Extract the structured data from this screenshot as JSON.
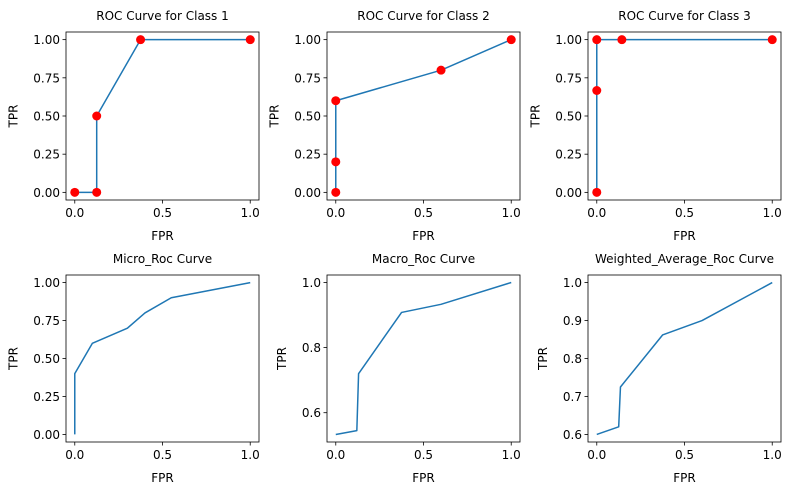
{
  "colors": {
    "line": "#1f77b4",
    "marker": "#ff0000"
  },
  "chart_data": [
    {
      "type": "line",
      "title": "ROC Curve for Class 1",
      "xlabel": "FPR",
      "ylabel": "TPR",
      "x": [
        0.0,
        0.125,
        0.125,
        0.375,
        1.0
      ],
      "y": [
        0.0,
        0.0,
        0.5,
        1.0,
        1.0
      ],
      "markers": true,
      "xlim": [
        -0.05,
        1.05
      ],
      "ylim": [
        -0.05,
        1.05
      ],
      "xticks": [
        0,
        0.5,
        1
      ],
      "xtick_labels": [
        "0.0",
        "0.5",
        "1.0"
      ],
      "yticks": [
        0,
        0.25,
        0.5,
        0.75,
        1
      ],
      "ytick_labels": [
        "0.00",
        "0.25",
        "0.50",
        "0.75",
        "1.00"
      ]
    },
    {
      "type": "line",
      "title": "ROC Curve for Class 2",
      "xlabel": "FPR",
      "ylabel": "TPR",
      "x": [
        0.0,
        0.0,
        0.0,
        0.6,
        1.0
      ],
      "y": [
        0.0,
        0.2,
        0.6,
        0.8,
        1.0
      ],
      "markers": true,
      "xlim": [
        -0.05,
        1.05
      ],
      "ylim": [
        -0.05,
        1.05
      ],
      "xticks": [
        0,
        0.5,
        1
      ],
      "xtick_labels": [
        "0.0",
        "0.5",
        "1.0"
      ],
      "yticks": [
        0,
        0.25,
        0.5,
        0.75,
        1
      ],
      "ytick_labels": [
        "0.00",
        "0.25",
        "0.50",
        "0.75",
        "1.00"
      ]
    },
    {
      "type": "line",
      "title": "ROC Curve for Class 3",
      "xlabel": "FPR",
      "ylabel": "TPR",
      "x": [
        0.0,
        0.0,
        0.0,
        0.143,
        1.0
      ],
      "y": [
        0.0,
        0.667,
        1.0,
        1.0,
        1.0
      ],
      "markers": true,
      "xlim": [
        -0.05,
        1.05
      ],
      "ylim": [
        -0.05,
        1.05
      ],
      "xticks": [
        0,
        0.5,
        1
      ],
      "xtick_labels": [
        "0.0",
        "0.5",
        "1.0"
      ],
      "yticks": [
        0,
        0.25,
        0.5,
        0.75,
        1
      ],
      "ytick_labels": [
        "0.00",
        "0.25",
        "0.50",
        "0.75",
        "1.00"
      ]
    },
    {
      "type": "line",
      "title": "Micro_Roc Curve",
      "xlabel": "FPR",
      "ylabel": "TPR",
      "x": [
        0.0,
        0.0,
        0.1,
        0.3,
        0.4,
        0.55,
        1.0
      ],
      "y": [
        0.0,
        0.4,
        0.6,
        0.7,
        0.8,
        0.9,
        1.0
      ],
      "markers": false,
      "xlim": [
        -0.05,
        1.05
      ],
      "ylim": [
        -0.05,
        1.05
      ],
      "xticks": [
        0,
        0.5,
        1
      ],
      "xtick_labels": [
        "0.0",
        "0.5",
        "1.0"
      ],
      "yticks": [
        0,
        0.25,
        0.5,
        0.75,
        1
      ],
      "ytick_labels": [
        "0.00",
        "0.25",
        "0.50",
        "0.75",
        "1.00"
      ]
    },
    {
      "type": "line",
      "title": "Macro_Roc Curve",
      "xlabel": "FPR",
      "ylabel": "TPR",
      "x": [
        0.0,
        0.12,
        0.13,
        0.375,
        0.6,
        1.0
      ],
      "y": [
        0.533,
        0.545,
        0.72,
        0.908,
        0.933,
        1.0
      ],
      "markers": false,
      "xlim": [
        -0.05,
        1.05
      ],
      "ylim": [
        0.51,
        1.023
      ],
      "xticks": [
        0,
        0.5,
        1
      ],
      "xtick_labels": [
        "0.0",
        "0.5",
        "1.0"
      ],
      "yticks": [
        0.6,
        0.8,
        1.0
      ],
      "ytick_labels": [
        "0.6",
        "0.8",
        "1.0"
      ]
    },
    {
      "type": "line",
      "title": "Weighted_Average_Roc Curve",
      "xlabel": "FPR",
      "ylabel": "TPR",
      "x": [
        0.0,
        0.125,
        0.135,
        0.375,
        0.6,
        1.0
      ],
      "y": [
        0.6,
        0.62,
        0.725,
        0.862,
        0.9,
        1.0
      ],
      "markers": false,
      "xlim": [
        -0.05,
        1.05
      ],
      "ylim": [
        0.58,
        1.02
      ],
      "xticks": [
        0,
        0.5,
        1
      ],
      "xtick_labels": [
        "0.0",
        "0.5",
        "1.0"
      ],
      "yticks": [
        0.6,
        0.7,
        0.8,
        0.9,
        1.0
      ],
      "ytick_labels": [
        "0.6",
        "0.7",
        "0.8",
        "0.9",
        "1.0"
      ]
    }
  ]
}
